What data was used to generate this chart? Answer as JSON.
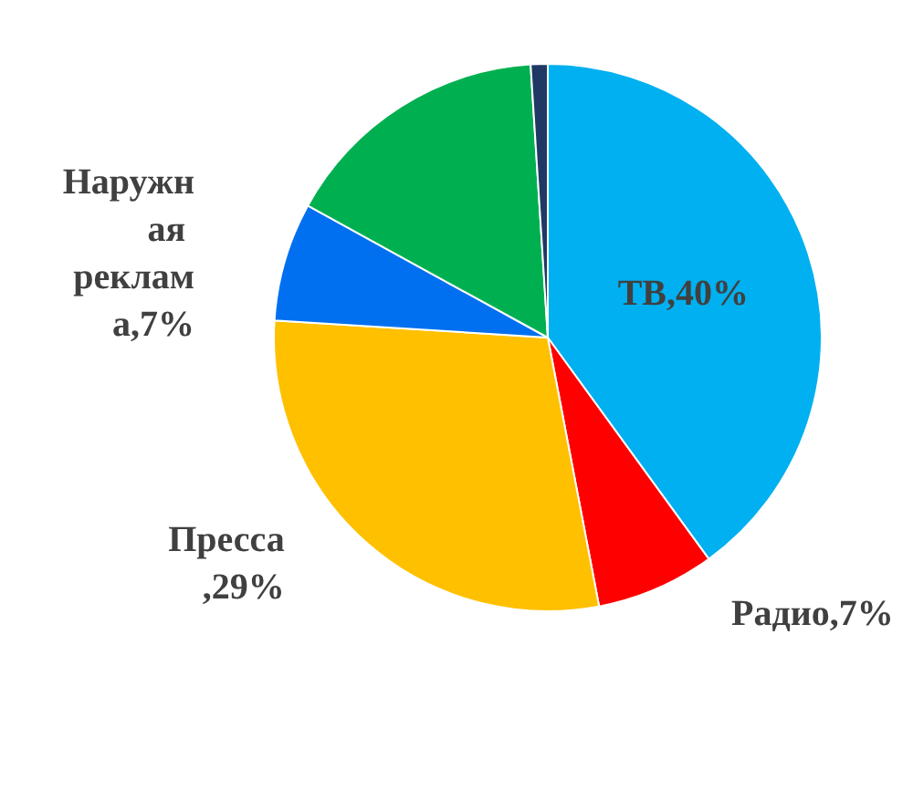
{
  "chart_data": {
    "type": "pie",
    "categories": [
      "ТВ,40%",
      "Радио,7%",
      "Пресса,29%",
      "Наружная реклама,7%",
      null,
      null
    ],
    "values": [
      40,
      7,
      29,
      7,
      16,
      1
    ],
    "colors": [
      "#00b0f0",
      "#ff0000",
      "#ffc000",
      "#0070f0",
      "#00b050",
      "#1f3864"
    ],
    "legend": false
  }
}
